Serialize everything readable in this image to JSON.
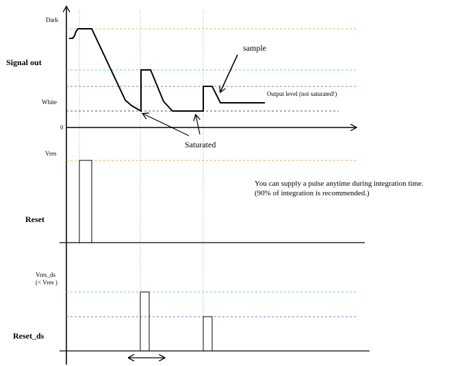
{
  "labels": {
    "dark": "Dark",
    "signal_out": "Signal out",
    "white": "White",
    "zero": "0",
    "vres": "Vres",
    "reset": "Reset",
    "vres_ds": "Vres_ds",
    "vres_ds_note": "(< Vres )",
    "reset_ds": "Reset_ds",
    "sample": "sample",
    "output_level": "Output level (not saturated!)",
    "saturated": "Saturated",
    "note_line1": "You can supply a pulse anytime during integration time.",
    "note_line2": "(90% of integration is recommended.)"
  },
  "colors": {
    "orange_level": "#f4a460",
    "cyan_level": "#5bc8e8",
    "blue_level": "#6a7fd0",
    "black_level": "#555555",
    "vline": "#888888"
  }
}
